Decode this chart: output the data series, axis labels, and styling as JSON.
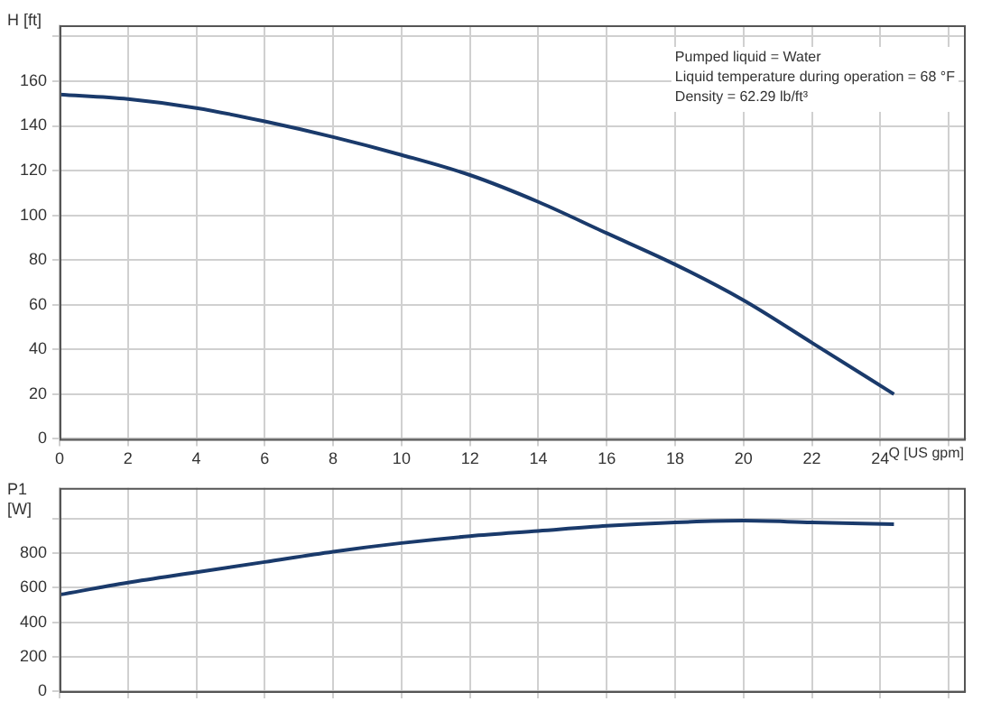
{
  "chart_data": [
    {
      "type": "line",
      "ylabel": "H [ft]",
      "xlabel": "Q [US gpm]",
      "x": [
        0,
        2,
        4,
        6,
        8,
        10,
        12,
        14,
        16,
        18,
        20,
        22,
        24.4
      ],
      "values": [
        154,
        152,
        148,
        142,
        135,
        127,
        118,
        106,
        92,
        78,
        62,
        43,
        20
      ],
      "color": "#1a3a6b",
      "marker": "none",
      "xlim": [
        0,
        26.5
      ],
      "xticks": [
        0,
        2,
        4,
        6,
        8,
        10,
        12,
        14,
        16,
        18,
        20,
        22,
        24,
        {
          "value": 26,
          "label": null
        }
      ],
      "ylim": [
        0,
        185
      ],
      "yticks": [
        0,
        20,
        40,
        60,
        80,
        100,
        120,
        140,
        160,
        {
          "value": 180,
          "label": null
        }
      ],
      "grid": true,
      "annotations": [
        "Pumped liquid = Water",
        "Liquid temperature during operation = 68 °F",
        "Density = 62.29 lb/ft³"
      ]
    },
    {
      "type": "line",
      "ylabel": "P1 [W]",
      "x": [
        0,
        2,
        4,
        6,
        8,
        10,
        12,
        14,
        16,
        18,
        20,
        22,
        24.4
      ],
      "values": [
        560,
        630,
        690,
        750,
        810,
        860,
        900,
        930,
        960,
        980,
        990,
        980,
        970
      ],
      "color": "#1a3a6b",
      "marker": "none",
      "xlim": [
        0,
        26.5
      ],
      "xticks": [
        0,
        2,
        4,
        6,
        8,
        10,
        12,
        14,
        16,
        18,
        20,
        22,
        24,
        {
          "value": 26,
          "label": null
        }
      ],
      "ylim": [
        0,
        1180
      ],
      "yticks": [
        0,
        200,
        400,
        600,
        800,
        {
          "value": 1000,
          "label": null
        }
      ],
      "grid": true,
      "tick_labels": "y"
    }
  ]
}
